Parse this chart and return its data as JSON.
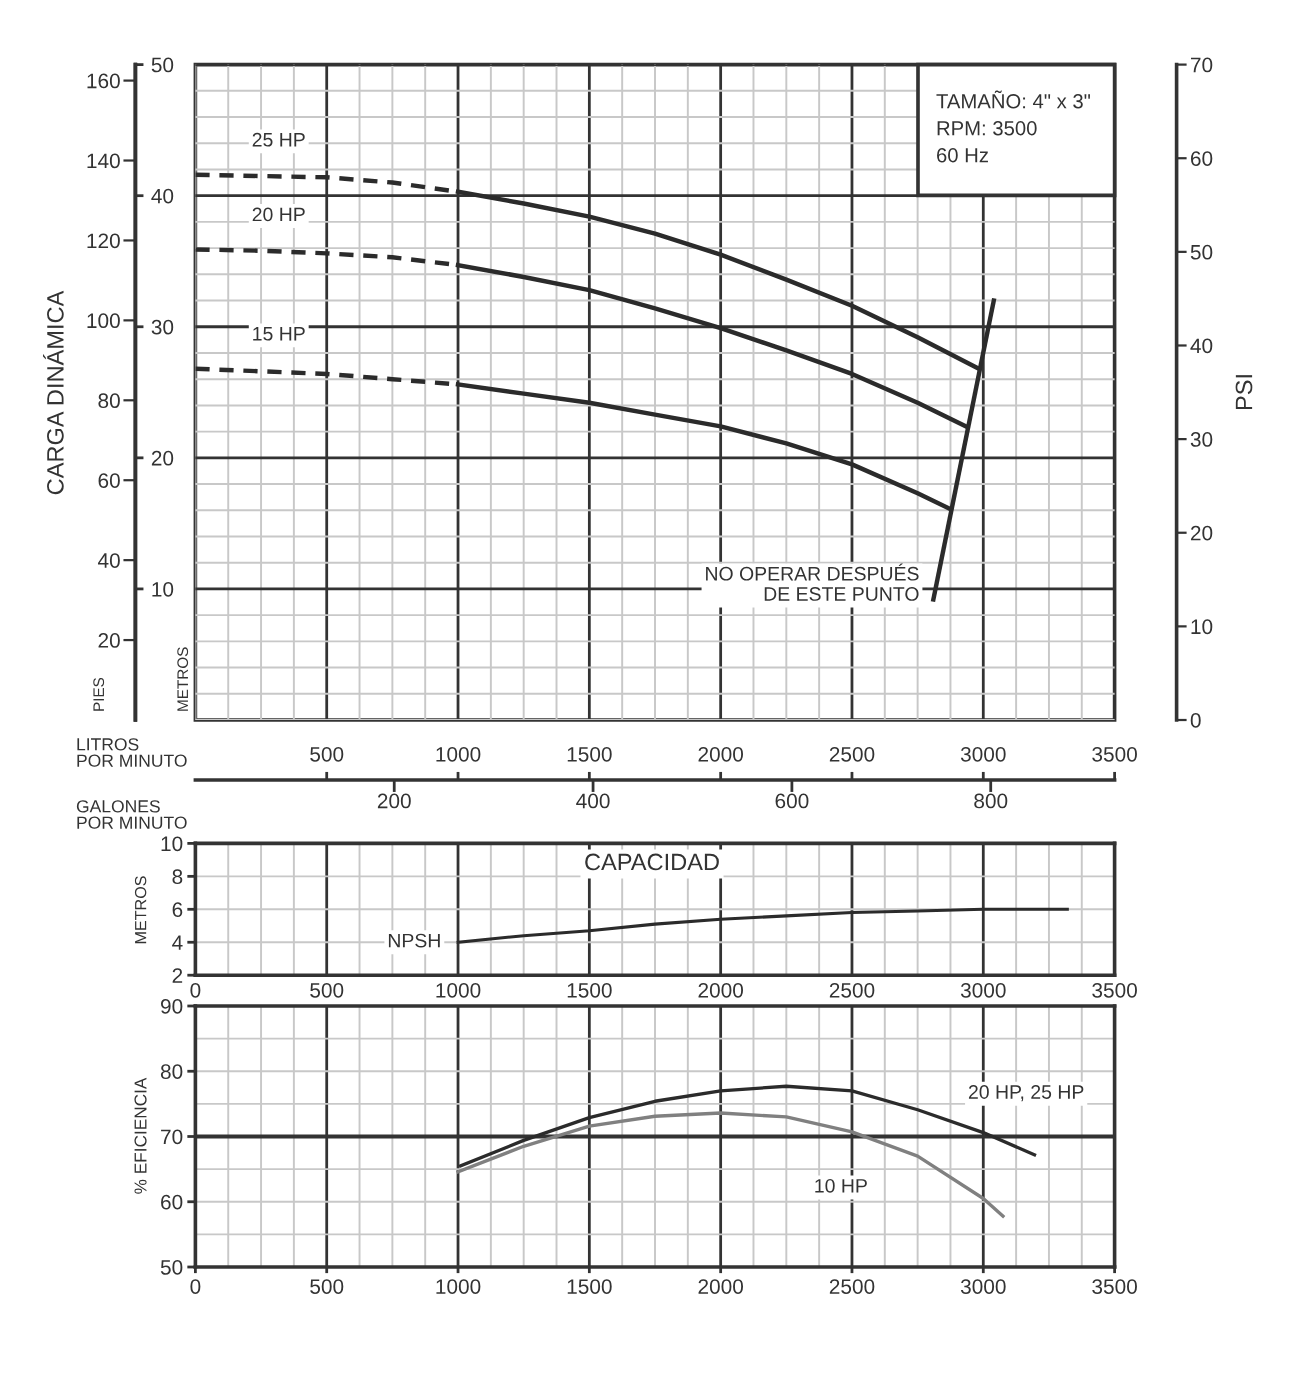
{
  "chart_data": [
    {
      "type": "line",
      "xlabel": "LITROS\nPOR MINUTO",
      "x2label": "GALONES\nPOR MINUTO",
      "ylabel": "METROS",
      "y2label": "PIES",
      "y3label": "PSI",
      "xlim": [
        0,
        3500
      ],
      "xticks": [
        500,
        1000,
        1500,
        2000,
        2500,
        3000,
        3500
      ],
      "x2lim": [
        0,
        924.6
      ],
      "x2ticks": [
        200,
        400,
        600,
        800
      ],
      "ylim": [
        0,
        50
      ],
      "yticks": [
        10,
        20,
        30,
        40,
        50
      ],
      "y2lim": [
        0,
        164
      ],
      "y2ticks": [
        20,
        40,
        60,
        80,
        100,
        120,
        140,
        160
      ],
      "y3lim": [
        0,
        70
      ],
      "y3ticks": [
        0,
        10,
        20,
        30,
        40,
        50,
        60,
        70
      ],
      "grid": true,
      "series": [
        {
          "name": "25 HP",
          "color": "#2b2b2b",
          "line_style": "dashed",
          "x": [
            0,
            250,
            500,
            750,
            1000
          ],
          "values": [
            41.6,
            41.5,
            41.4,
            41.0,
            40.3
          ]
        },
        {
          "color": "#2b2b2b",
          "x": [
            1000,
            1250,
            1500,
            1750,
            2000,
            2250,
            2500,
            2750,
            2983
          ],
          "values": [
            40.3,
            39.4,
            38.4,
            37.1,
            35.5,
            33.6,
            31.6,
            29.2,
            26.8
          ]
        },
        {
          "name": "20 HP",
          "color": "#2b2b2b",
          "line_style": "dashed",
          "x": [
            0,
            250,
            500,
            750,
            1000
          ],
          "values": [
            35.9,
            35.8,
            35.6,
            35.3,
            34.7
          ]
        },
        {
          "color": "#2b2b2b",
          "x": [
            1000,
            1250,
            1500,
            1750,
            2000,
            2250,
            2500,
            2750,
            2933
          ],
          "values": [
            34.7,
            33.8,
            32.8,
            31.4,
            29.9,
            28.2,
            26.4,
            24.2,
            22.4
          ]
        },
        {
          "name": "15 HP",
          "color": "#2b2b2b",
          "line_style": "dashed",
          "x": [
            0,
            250,
            500,
            750,
            1000
          ],
          "values": [
            26.8,
            26.6,
            26.4,
            26.0,
            25.6
          ]
        },
        {
          "color": "#2b2b2b",
          "x": [
            1000,
            1250,
            1500,
            1750,
            2000,
            2250,
            2500,
            2750,
            2874
          ],
          "values": [
            25.6,
            24.9,
            24.2,
            23.3,
            22.4,
            21.1,
            19.5,
            17.3,
            16.1
          ]
        },
        {
          "color": "#2b2b2b",
          "x": [
            2810,
            3040
          ],
          "values": [
            9.2,
            32.0
          ]
        }
      ],
      "annotations": [
        "CARGA DINÁMICA",
        "TAMAÑO: 4\" x 3\"",
        "RPM: 3500",
        "60 Hz",
        {
          "text": "NO OPERAR DESPUÉS\nDE ESTE PUNTO",
          "x": 2810,
          "y": 9.2
        }
      ]
    },
    {
      "type": "line",
      "ylabel": "METROS",
      "xlim": [
        0,
        3500
      ],
      "xticks": [
        0,
        500,
        1000,
        1500,
        2000,
        2500,
        3000,
        3500
      ],
      "ylim": [
        2,
        10
      ],
      "yticks": [
        2,
        4,
        6,
        8,
        10
      ],
      "tick_labels": "y",
      "grid": true,
      "series": [
        {
          "name": "NPSH",
          "color": "#2b2b2b",
          "x": [
            1000,
            1250,
            1500,
            1750,
            2000,
            2250,
            2500,
            2750,
            3000,
            3320
          ],
          "values": [
            4.0,
            4.4,
            4.7,
            5.1,
            5.4,
            5.6,
            5.8,
            5.9,
            6.0,
            6.0
          ]
        }
      ],
      "annotations": [
        "CAPACIDAD"
      ]
    },
    {
      "type": "line",
      "ylabel": "% EFICIENCIA",
      "xlim": [
        0,
        3500
      ],
      "xticks": [
        0,
        500,
        1000,
        1500,
        2000,
        2500,
        3000,
        3500
      ],
      "x2lim": [
        0,
        3500
      ],
      "x2ticks": [
        0,
        500,
        1000,
        1500,
        2000,
        2500,
        3000,
        3500
      ],
      "ylim": [
        50,
        90
      ],
      "yticks": [
        50,
        60,
        70,
        80,
        90
      ],
      "grid": true,
      "ref_lines": [
        {
          "axis": "y",
          "value": 70,
          "color": "#333333"
        }
      ],
      "series": [
        {
          "name": "20 HP, 25 HP",
          "color": "#2b2b2b",
          "x": [
            1010,
            1250,
            1500,
            1750,
            2000,
            2250,
            2500,
            2750,
            3000,
            3195
          ],
          "values": [
            65.5,
            69.4,
            72.9,
            75.4,
            77.0,
            77.7,
            77.0,
            74.1,
            70.6,
            67.2
          ]
        },
        {
          "name": "10 HP",
          "color": "#808080",
          "x": [
            1000,
            1250,
            1500,
            1750,
            2000,
            2250,
            2500,
            2750,
            3000,
            3075
          ],
          "values": [
            64.6,
            68.5,
            71.6,
            73.1,
            73.6,
            73.0,
            70.7,
            67.0,
            60.5,
            57.8
          ]
        }
      ]
    }
  ]
}
